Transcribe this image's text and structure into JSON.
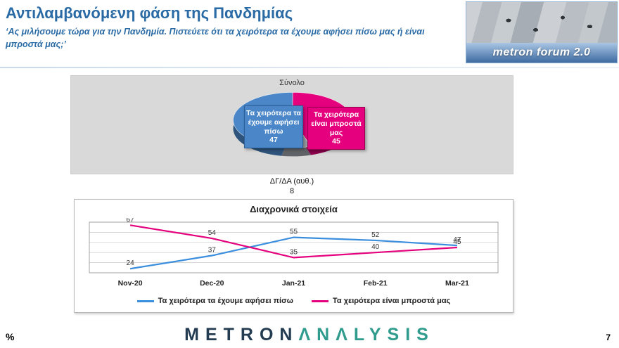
{
  "header": {
    "title": "Αντιλαμβανόμενη φάση της Πανδημίας",
    "subtitle": "‘Ας μιλήσουμε τώρα για την Πανδημία. Πιστεύετε ότι τα χειρότερα τα έχουμε αφήσει πίσω μας ή είναι μπροστά μας;’",
    "logo_text": "metron forum 2.0"
  },
  "chart_data": [
    {
      "type": "pie",
      "title": "Σύνολο",
      "labels": [
        "Τα χειρότερα τα έχουμε αφήσει πίσω",
        "Τα χειρότερα είναι μπροστά μας",
        "ΔΓ/ΔΑ (αυθ.)"
      ],
      "values": [
        47,
        45,
        8
      ],
      "colors": [
        "#4a86c8",
        "#e5007d",
        "#9aa0a6"
      ]
    },
    {
      "type": "line",
      "title": "Διαχρονικά στοιχεία",
      "categories": [
        "Nov-20",
        "Dec-20",
        "Jan-21",
        "Feb-21",
        "Mar-21"
      ],
      "series": [
        {
          "name": "Τα χειρότερα τα έχουμε αφήσει πίσω",
          "values": [
            24,
            37,
            55,
            52,
            47
          ],
          "color": "#3b8ede"
        },
        {
          "name": "Τα χειρότερα είναι μπροστά μας",
          "values": [
            67,
            54,
            35,
            40,
            45
          ],
          "color": "#e5007d"
        }
      ],
      "ylim": [
        20,
        70
      ],
      "grid": true,
      "legend_position": "bottom"
    }
  ],
  "footer": {
    "percent_label": "%",
    "page_number": "7",
    "brand_metron": "METRON",
    "brand_analysis": "ΛNΛLYSIS"
  }
}
